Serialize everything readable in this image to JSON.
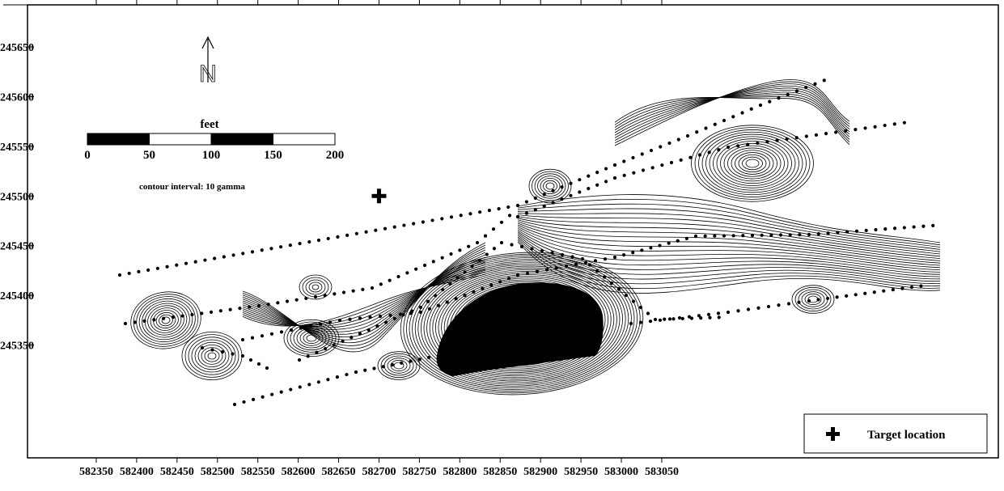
{
  "map": {
    "x_axis": {
      "ticks": [
        "582350",
        "582400",
        "582450",
        "582500",
        "582550",
        "582600",
        "582650",
        "582700",
        "582750",
        "582800",
        "582850",
        "582900",
        "582950",
        "583000",
        "583050"
      ],
      "range": [
        582330,
        583080
      ]
    },
    "y_axis": {
      "ticks": [
        "245650",
        "245600",
        "245550",
        "245500",
        "245450",
        "245400",
        "245350"
      ],
      "range": [
        245320,
        245680
      ]
    },
    "north_arrow": {
      "label": "N"
    },
    "scale_bar": {
      "title": "feet",
      "labels": [
        "0",
        "50",
        "100",
        "150",
        "200"
      ],
      "segment_colors": [
        "#000000",
        "#ffffff",
        "#000000",
        "#ffffff"
      ]
    },
    "note": "contour interval: 10 gamma",
    "target": {
      "x": 582700,
      "y": 245500
    },
    "legend": {
      "symbol": "plus-icon",
      "label": "Target location"
    }
  }
}
